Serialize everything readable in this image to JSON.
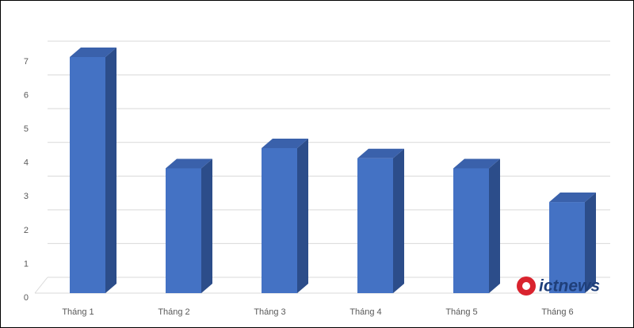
{
  "chart_data": {
    "type": "bar3d",
    "categories": [
      "Tháng 1",
      "Tháng 2",
      "Tháng 3",
      "Tháng 4",
      "Tháng 5",
      "Tháng 6"
    ],
    "values": [
      7,
      3.7,
      4.3,
      4,
      3.7,
      2.7
    ],
    "color": "#4472c4",
    "ylim": [
      0,
      7
    ],
    "yticks": [
      0,
      1,
      2,
      3,
      4,
      5,
      6,
      7
    ],
    "grid": true,
    "watermark": "ictnews"
  }
}
